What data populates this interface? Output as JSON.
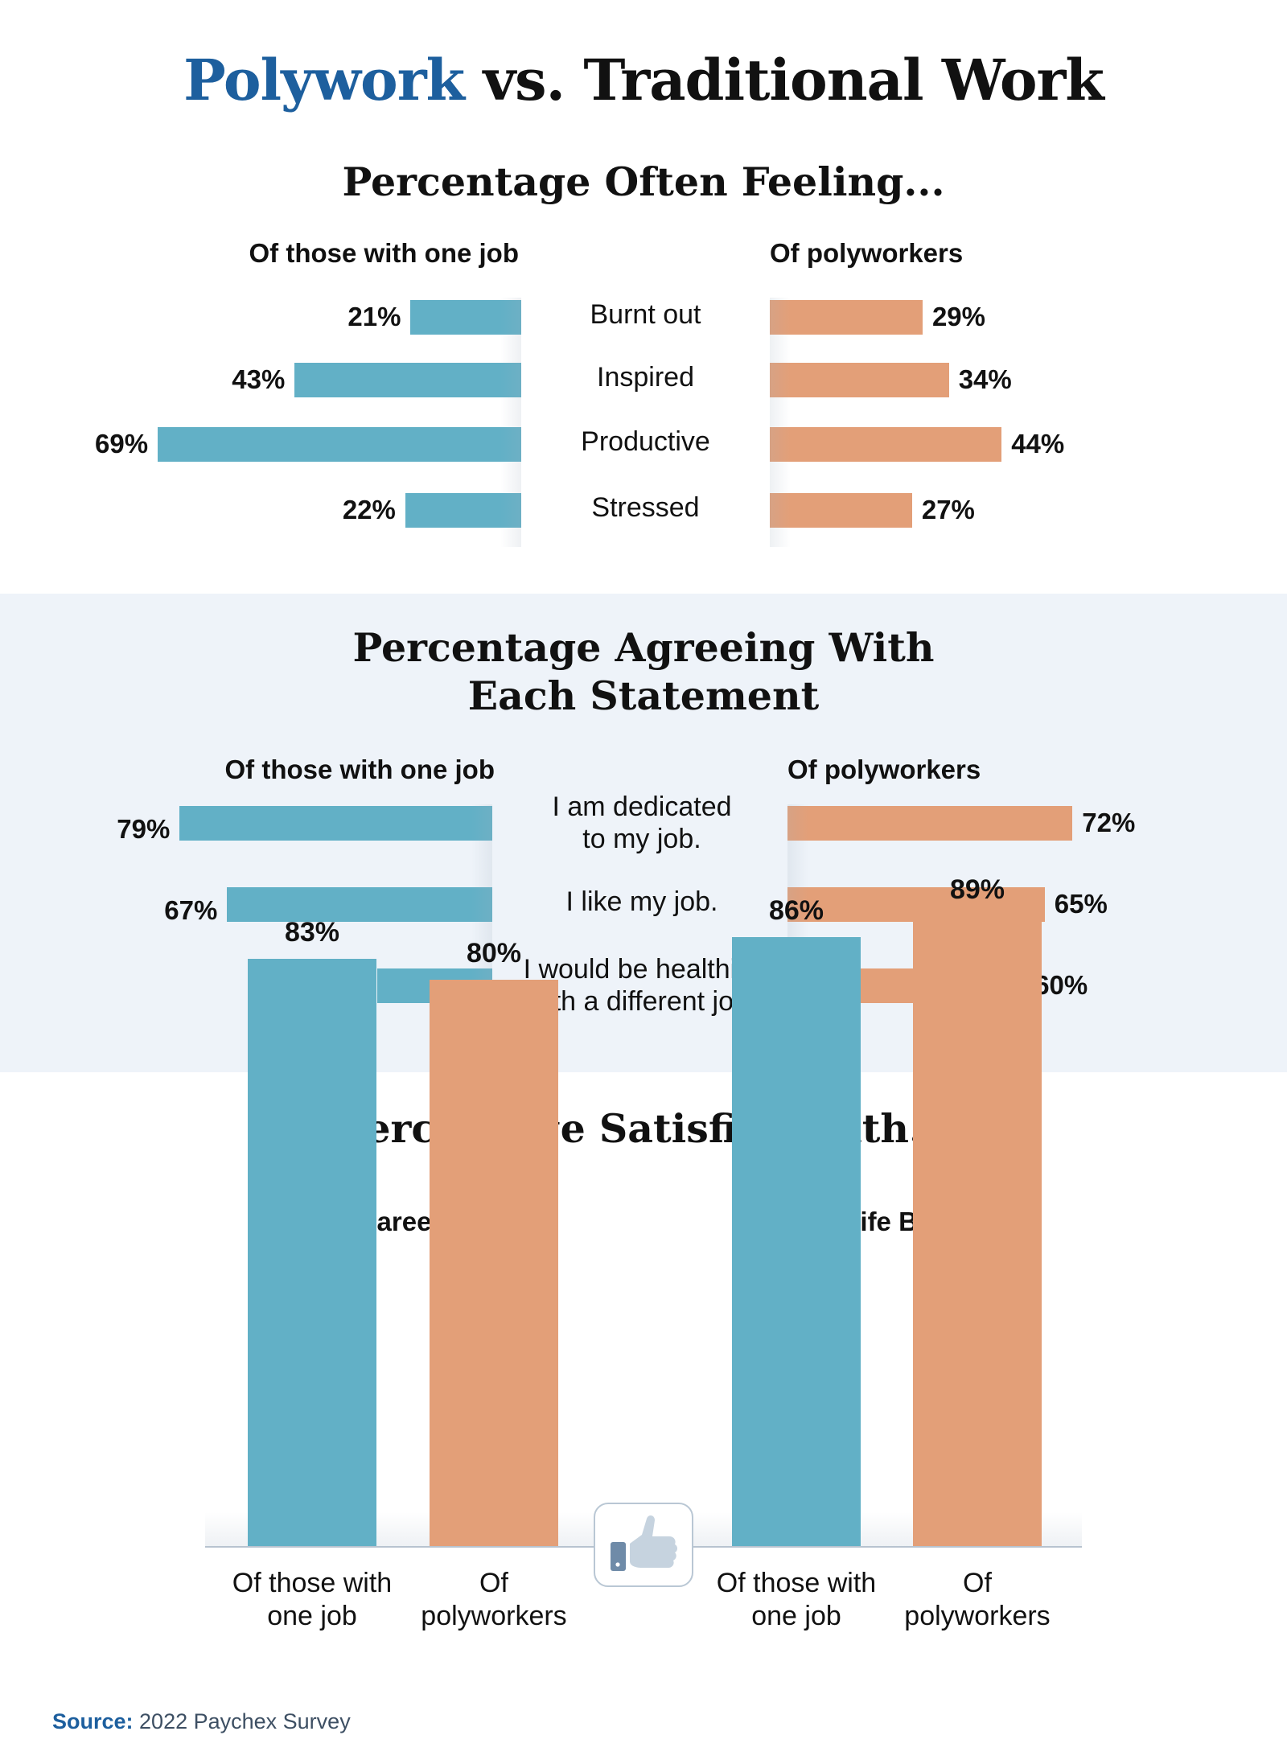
{
  "title": {
    "accent": "Polywork",
    "rest": " vs. Traditional Work"
  },
  "colors": {
    "one_job": "#62b0c6",
    "polyworkers": "#e39f78",
    "accent": "#1d5f9e",
    "band": "#eef3f9"
  },
  "sections": {
    "feeling": {
      "title": "Percentage Often Feeling...",
      "left_label": "Of those with one job",
      "right_label": "Of polyworkers"
    },
    "agreeing": {
      "title_line1": "Percentage Agreeing With",
      "title_line2": "Each Statement",
      "left_label": "Of those with one job",
      "right_label": "Of polyworkers"
    },
    "satisfied": {
      "title": "Percentage Satisfied With..."
    }
  },
  "icon": "thumbs-up-icon",
  "source": {
    "label": "Source:",
    "text": " 2022 Paychex Survey"
  },
  "chart_data": [
    {
      "type": "bar",
      "orientation": "horizontal-butterfly",
      "categories": [
        "Burnt out",
        "Inspired",
        "Productive",
        "Stressed"
      ],
      "series": [
        {
          "name": "Of those with one job",
          "values": [
            21,
            43,
            69,
            22
          ],
          "labels": [
            "21%",
            "43%",
            "69%",
            "22%"
          ]
        },
        {
          "name": "Of polyworkers",
          "values": [
            29,
            34,
            44,
            27
          ],
          "labels": [
            "29%",
            "34%",
            "44%",
            "27%"
          ]
        }
      ],
      "unit": "%"
    },
    {
      "type": "bar",
      "orientation": "horizontal-butterfly",
      "categories": [
        [
          "I am dedicated",
          "to my job."
        ],
        [
          "I like my job."
        ],
        [
          "I would be healthier",
          "with a different job."
        ]
      ],
      "series": [
        {
          "name": "Of those with one job",
          "values": [
            79,
            67,
            29
          ],
          "labels": [
            "79%",
            "67%",
            "29%"
          ]
        },
        {
          "name": "Of polyworkers",
          "values": [
            72,
            65,
            60
          ],
          "labels": [
            "72%",
            "65%",
            "60%"
          ]
        }
      ],
      "unit": "%"
    },
    {
      "type": "bar",
      "orientation": "vertical-grouped",
      "groups": [
        {
          "title": "Career",
          "bars": [
            {
              "category": [
                "Of those with",
                "one job"
              ],
              "value": 83,
              "label": "83%",
              "series": "one_job"
            },
            {
              "category": [
                "Of",
                "polyworkers"
              ],
              "value": 80,
              "label": "80%",
              "series": "polyworkers"
            }
          ]
        },
        {
          "title": "Work-Life Balance",
          "bars": [
            {
              "category": [
                "Of those with",
                "one job"
              ],
              "value": 86,
              "label": "86%",
              "series": "one_job"
            },
            {
              "category": [
                "Of",
                "polyworkers"
              ],
              "value": 89,
              "label": "89%",
              "series": "polyworkers"
            }
          ]
        }
      ],
      "unit": "%"
    }
  ]
}
